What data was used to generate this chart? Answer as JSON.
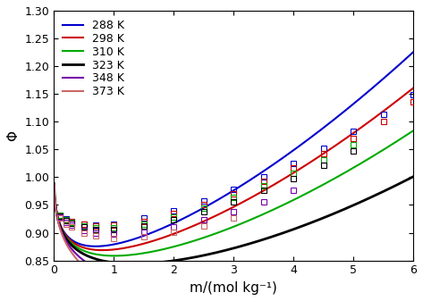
{
  "temperatures": [
    288,
    298,
    310,
    323,
    348,
    373
  ],
  "colors": [
    "#0000cc",
    "#cc0000",
    "#00aa00",
    "#000000",
    "#7700aa",
    "#cc6666"
  ],
  "line_widths": [
    1.5,
    1.5,
    1.5,
    2.0,
    1.5,
    1.5
  ],
  "xlabel": "m/(mol kg⁻¹)",
  "ylabel": "Φ",
  "xlim": [
    0,
    6
  ],
  "ylim": [
    0.85,
    1.3
  ],
  "yticks": [
    0.85,
    0.9,
    0.95,
    1.0,
    1.05,
    1.1,
    1.15,
    1.2,
    1.25,
    1.3
  ],
  "xticks": [
    0,
    1,
    2,
    3,
    4,
    5,
    6
  ],
  "curve_params": {
    "288": {
      "A": 0.392,
      "b": 1.2,
      "B": 0.053,
      "C": 0.0042
    },
    "298": {
      "A": 0.392,
      "b": 1.2,
      "B": 0.044,
      "C": 0.0039
    },
    "310": {
      "A": 0.392,
      "b": 1.2,
      "B": 0.033,
      "C": 0.0036
    },
    "323": {
      "A": 0.392,
      "b": 1.2,
      "B": 0.021,
      "C": 0.0033
    },
    "348": {
      "A": 0.392,
      "b": 1.2,
      "B": -0.002,
      "C": 0.0028
    },
    "373": {
      "A": 0.392,
      "b": 1.2,
      "B": -0.024,
      "C": 0.0023
    }
  },
  "exp_data": {
    "288": {
      "m": [
        0.1,
        0.2,
        0.3,
        0.5,
        0.7,
        1.0,
        1.5,
        2.0,
        2.5,
        3.0,
        3.5,
        4.0,
        4.5,
        5.0,
        5.5,
        6.0
      ],
      "phi": [
        0.932,
        0.925,
        0.921,
        0.916,
        0.914,
        0.916,
        0.926,
        0.94,
        0.958,
        0.978,
        1.001,
        1.025,
        1.052,
        1.083,
        1.113,
        1.148
      ]
    },
    "298": {
      "m": [
        0.1,
        0.2,
        0.3,
        0.5,
        0.7,
        1.0,
        1.5,
        2.0,
        2.5,
        3.0,
        3.5,
        4.0,
        4.5,
        5.0,
        5.5,
        6.0
      ],
      "phi": [
        0.932,
        0.924,
        0.921,
        0.915,
        0.912,
        0.913,
        0.921,
        0.935,
        0.951,
        0.97,
        0.992,
        1.016,
        1.042,
        1.07,
        1.1,
        1.135
      ]
    },
    "310": {
      "m": [
        0.1,
        0.2,
        0.3,
        0.5,
        0.7,
        1.0,
        1.5,
        2.0,
        2.5,
        3.0,
        3.5,
        4.0,
        4.5,
        5.0
      ],
      "phi": [
        0.931,
        0.923,
        0.919,
        0.912,
        0.909,
        0.909,
        0.916,
        0.929,
        0.945,
        0.963,
        0.984,
        1.007,
        1.032,
        1.059
      ]
    },
    "323": {
      "m": [
        0.1,
        0.2,
        0.3,
        0.5,
        0.7,
        1.0,
        1.5,
        2.0,
        2.5,
        3.0,
        3.5,
        4.0,
        4.5,
        5.0
      ],
      "phi": [
        0.93,
        0.922,
        0.917,
        0.91,
        0.906,
        0.906,
        0.912,
        0.923,
        0.938,
        0.956,
        0.976,
        0.998,
        1.022,
        1.047
      ]
    },
    "348": {
      "m": [
        0.1,
        0.2,
        0.3,
        0.5,
        0.7,
        1.0,
        1.5,
        2.0,
        2.5,
        3.0,
        3.5,
        4.0
      ],
      "phi": [
        0.928,
        0.918,
        0.913,
        0.904,
        0.899,
        0.897,
        0.901,
        0.91,
        0.923,
        0.938,
        0.956,
        0.977
      ]
    },
    "373": {
      "m": [
        0.1,
        0.2,
        0.3,
        0.5,
        0.7,
        1.0,
        1.5,
        2.0,
        2.5,
        3.0
      ],
      "phi": [
        0.927,
        0.916,
        0.91,
        0.9,
        0.894,
        0.89,
        0.893,
        0.901,
        0.912,
        0.927
      ]
    }
  },
  "legend_fontsize": 9,
  "tick_fontsize": 9,
  "axis_label_fontsize": 11
}
